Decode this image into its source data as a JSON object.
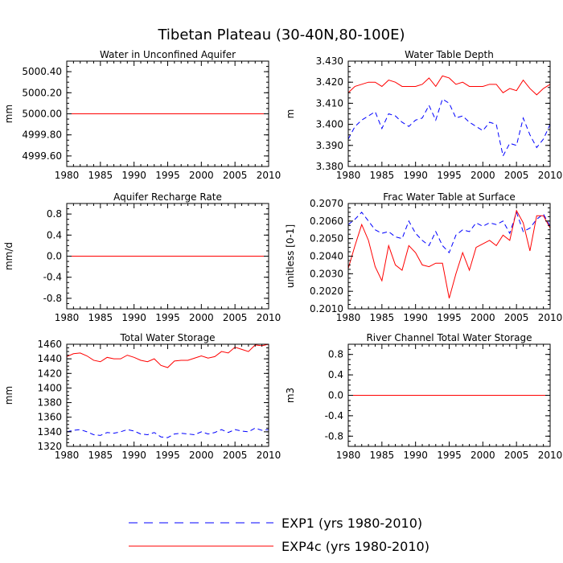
{
  "title": "Tibetan Plateau (30-40N,80-100E)",
  "colors": {
    "exp1": "#0000ff",
    "exp4c": "#ff0000",
    "frame": "#000000"
  },
  "legend": {
    "items": [
      {
        "key": "exp1",
        "label": "EXP1 (yrs 1980-2010)",
        "dash": "dashed"
      },
      {
        "key": "exp4c",
        "label": "EXP4c (yrs 1980-2010)",
        "dash": "solid"
      }
    ]
  },
  "chart_data": [
    {
      "type": "line",
      "title": "Water in Unconfined Aquifer",
      "ylabel": "mm",
      "xlim": [
        1980,
        2010
      ],
      "ylim": [
        4999.5,
        5000.5
      ],
      "xticks": [
        1980,
        1985,
        1990,
        1995,
        2000,
        2005,
        2010
      ],
      "yticks": [
        4999.6,
        4999.8,
        5000.0,
        5000.2,
        5000.4
      ],
      "ytick_labels": [
        "4999.60",
        "4999.80",
        "5000.00",
        "5000.20",
        "5000.40"
      ],
      "x": [
        1980,
        1981,
        1982,
        1983,
        1984,
        1985,
        1986,
        1987,
        1988,
        1989,
        1990,
        1991,
        1992,
        1993,
        1994,
        1995,
        1996,
        1997,
        1998,
        1999,
        2000,
        2001,
        2002,
        2003,
        2004,
        2005,
        2006,
        2007,
        2008,
        2009,
        2010
      ],
      "series": [
        {
          "name": "EXP1",
          "values": [
            5000,
            5000,
            5000,
            5000,
            5000,
            5000,
            5000,
            5000,
            5000,
            5000,
            5000,
            5000,
            5000,
            5000,
            5000,
            5000,
            5000,
            5000,
            5000,
            5000,
            5000,
            5000,
            5000,
            5000,
            5000,
            5000,
            5000,
            5000,
            5000,
            5000,
            5000
          ]
        },
        {
          "name": "EXP4c",
          "values": [
            5000,
            5000,
            5000,
            5000,
            5000,
            5000,
            5000,
            5000,
            5000,
            5000,
            5000,
            5000,
            5000,
            5000,
            5000,
            5000,
            5000,
            5000,
            5000,
            5000,
            5000,
            5000,
            5000,
            5000,
            5000,
            5000,
            5000,
            5000,
            5000,
            5000,
            5000
          ]
        }
      ]
    },
    {
      "type": "line",
      "title": "Water Table Depth",
      "ylabel": "m",
      "xlim": [
        1980,
        2010
      ],
      "ylim": [
        3.38,
        3.43
      ],
      "xticks": [
        1980,
        1985,
        1990,
        1995,
        2000,
        2005,
        2010
      ],
      "yticks": [
        3.38,
        3.39,
        3.4,
        3.41,
        3.42,
        3.43
      ],
      "ytick_labels": [
        "3.380",
        "3.390",
        "3.400",
        "3.410",
        "3.420",
        "3.430"
      ],
      "x": [
        1980,
        1981,
        1982,
        1983,
        1984,
        1985,
        1986,
        1987,
        1988,
        1989,
        1990,
        1991,
        1992,
        1993,
        1994,
        1995,
        1996,
        1997,
        1998,
        1999,
        2000,
        2001,
        2002,
        2003,
        2004,
        2005,
        2006,
        2007,
        2008,
        2009,
        2010
      ],
      "series": [
        {
          "name": "EXP1",
          "values": [
            3.393,
            3.399,
            3.402,
            3.404,
            3.406,
            3.398,
            3.405,
            3.404,
            3.401,
            3.399,
            3.402,
            3.403,
            3.409,
            3.402,
            3.412,
            3.41,
            3.403,
            3.404,
            3.401,
            3.399,
            3.397,
            3.401,
            3.4,
            3.385,
            3.391,
            3.39,
            3.403,
            3.395,
            3.389,
            3.393,
            3.4
          ]
        },
        {
          "name": "EXP4c",
          "values": [
            3.415,
            3.418,
            3.419,
            3.42,
            3.42,
            3.418,
            3.421,
            3.42,
            3.418,
            3.418,
            3.418,
            3.419,
            3.422,
            3.418,
            3.423,
            3.422,
            3.419,
            3.42,
            3.418,
            3.418,
            3.418,
            3.419,
            3.419,
            3.415,
            3.417,
            3.416,
            3.421,
            3.417,
            3.414,
            3.417,
            3.419
          ]
        }
      ]
    },
    {
      "type": "line",
      "title": "Aquifer Recharge Rate",
      "ylabel": "mm/d",
      "xlim": [
        1980,
        2010
      ],
      "ylim": [
        -1.0,
        1.0
      ],
      "xticks": [
        1980,
        1985,
        1990,
        1995,
        2000,
        2005,
        2010
      ],
      "yticks": [
        -0.8,
        -0.4,
        0.0,
        0.4,
        0.8
      ],
      "ytick_labels": [
        "-0.8",
        "-0.4",
        "0.0",
        "0.4",
        "0.8"
      ],
      "x": [
        1980,
        1981,
        1982,
        1983,
        1984,
        1985,
        1986,
        1987,
        1988,
        1989,
        1990,
        1991,
        1992,
        1993,
        1994,
        1995,
        1996,
        1997,
        1998,
        1999,
        2000,
        2001,
        2002,
        2003,
        2004,
        2005,
        2006,
        2007,
        2008,
        2009,
        2010
      ],
      "series": [
        {
          "name": "EXP1",
          "values": [
            0,
            0,
            0,
            0,
            0,
            0,
            0,
            0,
            0,
            0,
            0,
            0,
            0,
            0,
            0,
            0,
            0,
            0,
            0,
            0,
            0,
            0,
            0,
            0,
            0,
            0,
            0,
            0,
            0,
            0,
            0
          ]
        },
        {
          "name": "EXP4c",
          "values": [
            0,
            0,
            0,
            0,
            0,
            0,
            0,
            0,
            0,
            0,
            0,
            0,
            0,
            0,
            0,
            0,
            0,
            0,
            0,
            0,
            0,
            0,
            0,
            0,
            0,
            0,
            0,
            0,
            0,
            0,
            0
          ]
        }
      ]
    },
    {
      "type": "line",
      "title": "Frac Water Table at Surface",
      "ylabel": "unitless [0-1]",
      "xlim": [
        1980,
        2010
      ],
      "ylim": [
        0.201,
        0.207
      ],
      "xticks": [
        1980,
        1985,
        1990,
        1995,
        2000,
        2005,
        2010
      ],
      "yticks": [
        0.201,
        0.202,
        0.203,
        0.204,
        0.205,
        0.206,
        0.207
      ],
      "ytick_labels": [
        "0.2010",
        "0.2020",
        "0.2030",
        "0.2040",
        "0.2050",
        "0.2060",
        "0.2070"
      ],
      "x": [
        1980,
        1981,
        1982,
        1983,
        1984,
        1985,
        1986,
        1987,
        1988,
        1989,
        1990,
        1991,
        1992,
        1993,
        1994,
        1995,
        1996,
        1997,
        1998,
        1999,
        2000,
        2001,
        2002,
        2003,
        2004,
        2005,
        2006,
        2007,
        2008,
        2009,
        2010
      ],
      "series": [
        {
          "name": "EXP1",
          "values": [
            0.2058,
            0.2061,
            0.2065,
            0.206,
            0.2055,
            0.2053,
            0.2054,
            0.2051,
            0.205,
            0.206,
            0.2053,
            0.2049,
            0.2046,
            0.2054,
            0.2046,
            0.2042,
            0.2052,
            0.2055,
            0.2054,
            0.2059,
            0.2057,
            0.2059,
            0.2058,
            0.206,
            0.2053,
            0.2065,
            0.2054,
            0.2056,
            0.2061,
            0.2064,
            0.2057
          ]
        },
        {
          "name": "EXP4c",
          "values": [
            0.2033,
            0.2046,
            0.2058,
            0.2049,
            0.2034,
            0.2026,
            0.2046,
            0.2035,
            0.2032,
            0.2046,
            0.2042,
            0.2035,
            0.2034,
            0.2036,
            0.2036,
            0.2016,
            0.203,
            0.2042,
            0.2032,
            0.2045,
            0.2047,
            0.2049,
            0.2046,
            0.2052,
            0.2049,
            0.2066,
            0.2059,
            0.2043,
            0.2063,
            0.2063,
            0.2056
          ]
        }
      ]
    },
    {
      "type": "line",
      "title": "Total Water Storage",
      "ylabel": "mm",
      "xlim": [
        1980,
        2010
      ],
      "ylim": [
        1320,
        1460
      ],
      "xticks": [
        1980,
        1985,
        1990,
        1995,
        2000,
        2005,
        2010
      ],
      "yticks": [
        1320,
        1340,
        1360,
        1380,
        1400,
        1420,
        1440,
        1460
      ],
      "ytick_labels": [
        "1320",
        "1340",
        "1360",
        "1380",
        "1400",
        "1420",
        "1440",
        "1460"
      ],
      "x": [
        1980,
        1981,
        1982,
        1983,
        1984,
        1985,
        1986,
        1987,
        1988,
        1989,
        1990,
        1991,
        1992,
        1993,
        1994,
        1995,
        1996,
        1997,
        1998,
        1999,
        2000,
        2001,
        2002,
        2003,
        2004,
        2005,
        2006,
        2007,
        2008,
        2009,
        2010
      ],
      "series": [
        {
          "name": "EXP1",
          "values": [
            1340,
            1342,
            1343,
            1340,
            1336,
            1335,
            1339,
            1338,
            1340,
            1343,
            1341,
            1337,
            1336,
            1339,
            1333,
            1332,
            1337,
            1338,
            1337,
            1336,
            1340,
            1337,
            1339,
            1343,
            1339,
            1343,
            1341,
            1340,
            1345,
            1342,
            1343
          ]
        },
        {
          "name": "EXP4c",
          "values": [
            1443,
            1447,
            1448,
            1444,
            1438,
            1436,
            1442,
            1440,
            1440,
            1445,
            1442,
            1438,
            1436,
            1440,
            1431,
            1428,
            1437,
            1438,
            1438,
            1441,
            1444,
            1441,
            1443,
            1450,
            1448,
            1456,
            1453,
            1450,
            1459,
            1458,
            1460
          ]
        }
      ]
    },
    {
      "type": "line",
      "title": "River Channel Total Water Storage",
      "ylabel": "m3",
      "xlim": [
        1980,
        2010
      ],
      "ylim": [
        -1.0,
        1.0
      ],
      "xticks": [
        1980,
        1985,
        1990,
        1995,
        2000,
        2005,
        2010
      ],
      "yticks": [
        -0.8,
        -0.4,
        0.0,
        0.4,
        0.8
      ],
      "ytick_labels": [
        "-0.8",
        "-0.4",
        "0.0",
        "0.4",
        "0.8"
      ],
      "x": [
        1980,
        1981,
        1982,
        1983,
        1984,
        1985,
        1986,
        1987,
        1988,
        1989,
        1990,
        1991,
        1992,
        1993,
        1994,
        1995,
        1996,
        1997,
        1998,
        1999,
        2000,
        2001,
        2002,
        2003,
        2004,
        2005,
        2006,
        2007,
        2008,
        2009,
        2010
      ],
      "series": [
        {
          "name": "EXP1",
          "values": [
            0,
            0,
            0,
            0,
            0,
            0,
            0,
            0,
            0,
            0,
            0,
            0,
            0,
            0,
            0,
            0,
            0,
            0,
            0,
            0,
            0,
            0,
            0,
            0,
            0,
            0,
            0,
            0,
            0,
            0,
            0
          ]
        },
        {
          "name": "EXP4c",
          "values": [
            0,
            0,
            0,
            0,
            0,
            0,
            0,
            0,
            0,
            0,
            0,
            0,
            0,
            0,
            0,
            0,
            0,
            0,
            0,
            0,
            0,
            0,
            0,
            0,
            0,
            0,
            0,
            0,
            0,
            0,
            0
          ]
        }
      ]
    }
  ]
}
